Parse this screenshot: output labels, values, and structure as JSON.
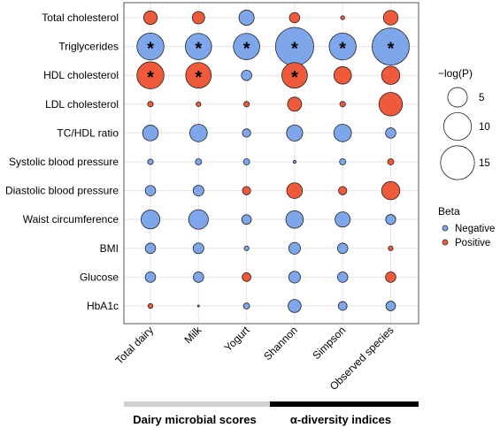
{
  "chart_data": {
    "type": "bubble-matrix",
    "rows": [
      "Total cholesterol",
      "Triglycerides",
      "HDL cholesterol",
      "LDL cholesterol",
      "TC/HDL ratio",
      "Systolic blood pressure",
      "Diastolic blood pressure",
      "Waist circumference",
      "BMI",
      "Glucose",
      "HbA1c"
    ],
    "columns": [
      "Total dairy",
      "Milk",
      "Yogurt",
      "Shannon",
      "Simpson",
      "Observed species"
    ],
    "size_legend": {
      "title": "−log(P)",
      "values": [
        5,
        10,
        15
      ]
    },
    "color_legend": {
      "title": "Beta",
      "entries": [
        {
          "label": "Negative",
          "color": "#7ea6ea"
        },
        {
          "label": "Positive",
          "color": "#ef5a3a"
        }
      ]
    },
    "column_groups": [
      {
        "label": "Dairy microbial scores",
        "columns": [
          "Total dairy",
          "Milk",
          "Yogurt"
        ],
        "bar_color": "#d0d0d0"
      },
      {
        "label": "α-diversity indices",
        "columns": [
          "Shannon",
          "Simpson",
          "Observed species"
        ],
        "bar_color": "#000000"
      }
    ],
    "points": [
      {
        "row": "Total cholesterol",
        "col": "Total dairy",
        "logp": 2.4,
        "sign": "Positive",
        "star": false
      },
      {
        "row": "Total cholesterol",
        "col": "Milk",
        "logp": 2.0,
        "sign": "Positive",
        "star": false
      },
      {
        "row": "Total cholesterol",
        "col": "Yogurt",
        "logp": 3.0,
        "sign": "Negative",
        "star": false
      },
      {
        "row": "Total cholesterol",
        "col": "Shannon",
        "logp": 1.4,
        "sign": "Positive",
        "star": false
      },
      {
        "row": "Total cholesterol",
        "col": "Simpson",
        "logp": 0.2,
        "sign": "Positive",
        "star": false
      },
      {
        "row": "Total cholesterol",
        "col": "Observed species",
        "logp": 2.8,
        "sign": "Positive",
        "star": false
      },
      {
        "row": "Triglycerides",
        "col": "Total dairy",
        "logp": 9.5,
        "sign": "Negative",
        "star": true
      },
      {
        "row": "Triglycerides",
        "col": "Milk",
        "logp": 9.0,
        "sign": "Negative",
        "star": true
      },
      {
        "row": "Triglycerides",
        "col": "Yogurt",
        "logp": 9.0,
        "sign": "Negative",
        "star": true
      },
      {
        "row": "Triglycerides",
        "col": "Shannon",
        "logp": 19.0,
        "sign": "Negative",
        "star": true
      },
      {
        "row": "Triglycerides",
        "col": "Simpson",
        "logp": 9.5,
        "sign": "Negative",
        "star": true
      },
      {
        "row": "Triglycerides",
        "col": "Observed species",
        "logp": 18.0,
        "sign": "Negative",
        "star": true
      },
      {
        "row": "HDL cholesterol",
        "col": "Total dairy",
        "logp": 9.5,
        "sign": "Positive",
        "star": true
      },
      {
        "row": "HDL cholesterol",
        "col": "Milk",
        "logp": 8.5,
        "sign": "Positive",
        "star": true
      },
      {
        "row": "HDL cholesterol",
        "col": "Yogurt",
        "logp": 1.4,
        "sign": "Negative",
        "star": false
      },
      {
        "row": "HDL cholesterol",
        "col": "Shannon",
        "logp": 8.5,
        "sign": "Positive",
        "star": true
      },
      {
        "row": "HDL cholesterol",
        "col": "Simpson",
        "logp": 4.0,
        "sign": "Positive",
        "star": false
      },
      {
        "row": "HDL cholesterol",
        "col": "Observed species",
        "logp": 4.3,
        "sign": "Positive",
        "star": false
      },
      {
        "row": "LDL cholesterol",
        "col": "Total dairy",
        "logp": 0.4,
        "sign": "Positive",
        "star": false
      },
      {
        "row": "LDL cholesterol",
        "col": "Milk",
        "logp": 0.3,
        "sign": "Positive",
        "star": false
      },
      {
        "row": "LDL cholesterol",
        "col": "Yogurt",
        "logp": 0.4,
        "sign": "Positive",
        "star": false
      },
      {
        "row": "LDL cholesterol",
        "col": "Shannon",
        "logp": 2.6,
        "sign": "Positive",
        "star": false
      },
      {
        "row": "LDL cholesterol",
        "col": "Simpson",
        "logp": 0.4,
        "sign": "Positive",
        "star": false
      },
      {
        "row": "LDL cholesterol",
        "col": "Observed species",
        "logp": 7.2,
        "sign": "Positive",
        "star": false
      },
      {
        "row": "TC/HDL ratio",
        "col": "Total dairy",
        "logp": 3.2,
        "sign": "Negative",
        "star": false
      },
      {
        "row": "TC/HDL ratio",
        "col": "Milk",
        "logp": 4.0,
        "sign": "Negative",
        "star": false
      },
      {
        "row": "TC/HDL ratio",
        "col": "Yogurt",
        "logp": 0.9,
        "sign": "Negative",
        "star": false
      },
      {
        "row": "TC/HDL ratio",
        "col": "Shannon",
        "logp": 3.4,
        "sign": "Negative",
        "star": false
      },
      {
        "row": "TC/HDL ratio",
        "col": "Simpson",
        "logp": 4.0,
        "sign": "Negative",
        "star": false
      },
      {
        "row": "TC/HDL ratio",
        "col": "Observed species",
        "logp": 1.4,
        "sign": "Negative",
        "star": false
      },
      {
        "row": "Systolic blood pressure",
        "col": "Total dairy",
        "logp": 0.4,
        "sign": "Negative",
        "star": false
      },
      {
        "row": "Systolic blood pressure",
        "col": "Milk",
        "logp": 0.5,
        "sign": "Negative",
        "star": false
      },
      {
        "row": "Systolic blood pressure",
        "col": "Yogurt",
        "logp": 0.5,
        "sign": "Negative",
        "star": false
      },
      {
        "row": "Systolic blood pressure",
        "col": "Shannon",
        "logp": 0.1,
        "sign": "Negative",
        "star": false
      },
      {
        "row": "Systolic blood pressure",
        "col": "Simpson",
        "logp": 0.5,
        "sign": "Negative",
        "star": false
      },
      {
        "row": "Systolic blood pressure",
        "col": "Observed species",
        "logp": 0.5,
        "sign": "Positive",
        "star": false
      },
      {
        "row": "Diastolic blood pressure",
        "col": "Total dairy",
        "logp": 1.4,
        "sign": "Negative",
        "star": false
      },
      {
        "row": "Diastolic blood pressure",
        "col": "Milk",
        "logp": 1.5,
        "sign": "Negative",
        "star": false
      },
      {
        "row": "Diastolic blood pressure",
        "col": "Yogurt",
        "logp": 0.9,
        "sign": "Positive",
        "star": false
      },
      {
        "row": "Diastolic blood pressure",
        "col": "Shannon",
        "logp": 3.2,
        "sign": "Positive",
        "star": false
      },
      {
        "row": "Diastolic blood pressure",
        "col": "Simpson",
        "logp": 0.9,
        "sign": "Positive",
        "star": false
      },
      {
        "row": "Diastolic blood pressure",
        "col": "Observed species",
        "logp": 4.3,
        "sign": "Positive",
        "star": false
      },
      {
        "row": "Waist circumference",
        "col": "Total dairy",
        "logp": 4.6,
        "sign": "Negative",
        "star": false
      },
      {
        "row": "Waist circumference",
        "col": "Milk",
        "logp": 5.0,
        "sign": "Negative",
        "star": false
      },
      {
        "row": "Waist circumference",
        "col": "Yogurt",
        "logp": 1.2,
        "sign": "Negative",
        "star": false
      },
      {
        "row": "Waist circumference",
        "col": "Shannon",
        "logp": 4.0,
        "sign": "Negative",
        "star": false
      },
      {
        "row": "Waist circumference",
        "col": "Simpson",
        "logp": 3.0,
        "sign": "Negative",
        "star": false
      },
      {
        "row": "Waist circumference",
        "col": "Observed species",
        "logp": 1.3,
        "sign": "Negative",
        "star": false
      },
      {
        "row": "BMI",
        "col": "Total dairy",
        "logp": 1.4,
        "sign": "Negative",
        "star": false
      },
      {
        "row": "BMI",
        "col": "Milk",
        "logp": 1.5,
        "sign": "Negative",
        "star": false
      },
      {
        "row": "BMI",
        "col": "Yogurt",
        "logp": 0.3,
        "sign": "Negative",
        "star": false
      },
      {
        "row": "BMI",
        "col": "Shannon",
        "logp": 1.8,
        "sign": "Negative",
        "star": false
      },
      {
        "row": "BMI",
        "col": "Simpson",
        "logp": 1.4,
        "sign": "Negative",
        "star": false
      },
      {
        "row": "BMI",
        "col": "Observed species",
        "logp": 0.3,
        "sign": "Positive",
        "star": false
      },
      {
        "row": "Glucose",
        "col": "Total dairy",
        "logp": 1.4,
        "sign": "Negative",
        "star": false
      },
      {
        "row": "Glucose",
        "col": "Milk",
        "logp": 1.4,
        "sign": "Negative",
        "star": false
      },
      {
        "row": "Glucose",
        "col": "Yogurt",
        "logp": 1.0,
        "sign": "Positive",
        "star": false
      },
      {
        "row": "Glucose",
        "col": "Shannon",
        "logp": 1.8,
        "sign": "Negative",
        "star": false
      },
      {
        "row": "Glucose",
        "col": "Simpson",
        "logp": 1.4,
        "sign": "Negative",
        "star": false
      },
      {
        "row": "Glucose",
        "col": "Observed species",
        "logp": 1.4,
        "sign": "Positive",
        "star": false
      },
      {
        "row": "HbA1c",
        "col": "Total dairy",
        "logp": 0.3,
        "sign": "Positive",
        "star": false
      },
      {
        "row": "HbA1c",
        "col": "Milk",
        "logp": 0.05,
        "sign": "Negative",
        "star": false
      },
      {
        "row": "HbA1c",
        "col": "Yogurt",
        "logp": 0.5,
        "sign": "Negative",
        "star": false
      },
      {
        "row": "HbA1c",
        "col": "Shannon",
        "logp": 2.2,
        "sign": "Negative",
        "star": false
      },
      {
        "row": "HbA1c",
        "col": "Simpson",
        "logp": 1.0,
        "sign": "Negative",
        "star": false
      },
      {
        "row": "HbA1c",
        "col": "Observed species",
        "logp": 1.2,
        "sign": "Negative",
        "star": false
      }
    ]
  }
}
